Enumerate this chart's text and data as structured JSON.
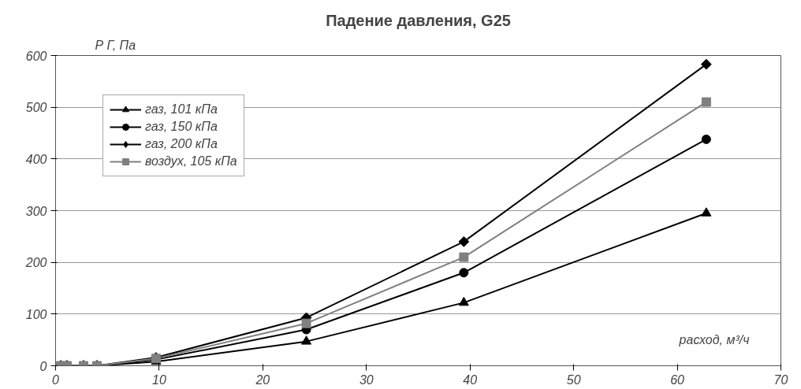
{
  "chart_data": {
    "type": "line",
    "title": "Падение давления, G25",
    "xlabel": "расход, м³/ч",
    "ylabel": "Р Г, Па",
    "x": [
      0.5,
      1.1,
      2.7,
      4.0,
      9.7,
      24.2,
      39.4,
      62.8
    ],
    "series": [
      {
        "name": "газ, 101 кПа",
        "color": "#000000",
        "marker": "triangle",
        "values": [
          0,
          0,
          0,
          0,
          8,
          47,
          122,
          295
        ]
      },
      {
        "name": "газ, 150 кПа",
        "color": "#000000",
        "marker": "circle",
        "values": [
          0,
          0,
          0,
          0,
          12,
          70,
          180,
          438
        ]
      },
      {
        "name": "газ, 200 кПа",
        "color": "#000000",
        "marker": "diamond",
        "values": [
          0,
          0,
          0,
          0,
          16,
          93,
          240,
          583
        ]
      },
      {
        "name": "воздух, 105 кПа",
        "color": "#808080",
        "marker": "square",
        "values": [
          0,
          0,
          0,
          0,
          14,
          82,
          210,
          510
        ]
      }
    ],
    "xlim": [
      0,
      70
    ],
    "xticks": [
      0,
      10,
      20,
      30,
      40,
      50,
      60,
      70
    ],
    "ylim": [
      0,
      600
    ],
    "yticks": [
      0,
      100,
      200,
      300,
      400,
      500,
      600
    ],
    "grid": "y",
    "legend": "top left",
    "line_style": "solid"
  }
}
